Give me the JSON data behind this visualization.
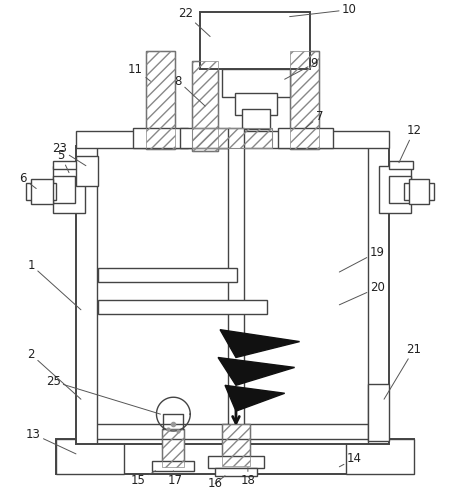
{
  "line_color": "#444444",
  "hatch_color": "#666666",
  "label_color": "#222222",
  "label_fs": 8.5,
  "lw": 1.0,
  "lw2": 1.4
}
